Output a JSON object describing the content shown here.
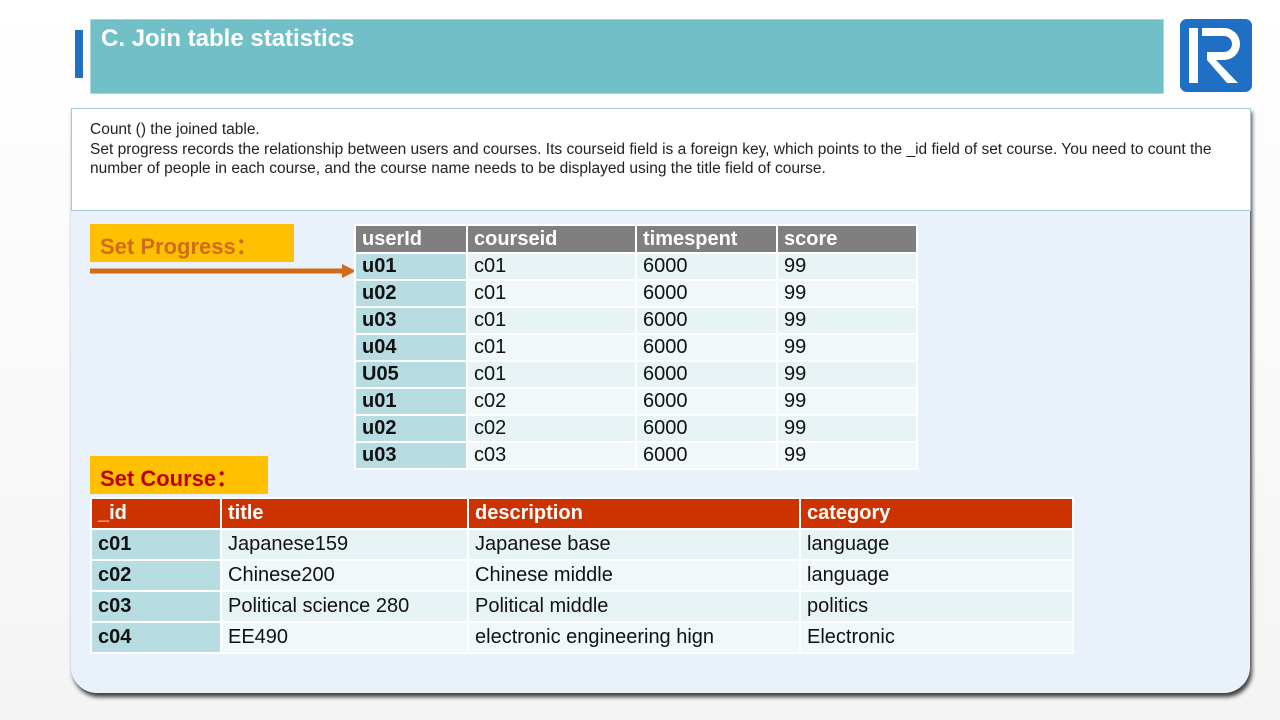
{
  "title": "C. Join table statistics",
  "logo_icon": "raqsoft-r-logo",
  "colors": {
    "title_bar": "#72c0c7",
    "accent": "#1f6fc4",
    "label_bg": "#ffc000",
    "progress_header": "#7f7f7f",
    "course_header": "#cc3300",
    "arrow": "#d06d18"
  },
  "description": {
    "line1": "Count () the joined table.",
    "line2": "Set progress records the relationship between users and courses. Its courseid field is a foreign key, which points to the _id field of set course. You need to count the number of people in each course, and the course name needs to be displayed using the title field of course."
  },
  "labels": {
    "progress": "Set Progress：",
    "course": "Set Course："
  },
  "progress_table": {
    "headers": [
      "userId",
      "courseid",
      "timespent",
      "score"
    ],
    "rows": [
      [
        "u01",
        "c01",
        "6000",
        "99"
      ],
      [
        "u02",
        "c01",
        "6000",
        "99"
      ],
      [
        "u03",
        "c01",
        "6000",
        "99"
      ],
      [
        "u04",
        "c01",
        "6000",
        "99"
      ],
      [
        "U05",
        "c01",
        "6000",
        "99"
      ],
      [
        "u01",
        "c02",
        "6000",
        "99"
      ],
      [
        "u02",
        "c02",
        "6000",
        "99"
      ],
      [
        "u03",
        "c03",
        "6000",
        "99"
      ]
    ]
  },
  "course_table": {
    "headers": [
      "_id",
      "title",
      "description",
      "category"
    ],
    "rows": [
      [
        "c01",
        "Japanese159",
        "Japanese base",
        "language"
      ],
      [
        "c02",
        "Chinese200",
        "Chinese middle",
        "language"
      ],
      [
        "c03",
        "Political science 280",
        "Political middle",
        "politics"
      ],
      [
        "c04",
        "EE490",
        "electronic engineering hign",
        "Electronic"
      ]
    ]
  }
}
